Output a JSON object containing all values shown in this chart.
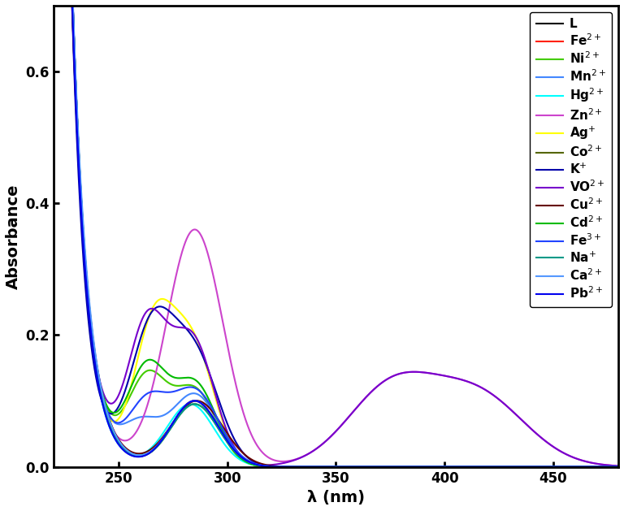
{
  "title": "",
  "xlabel": "λ (nm)",
  "ylabel": "Absorbance",
  "xlim": [
    220,
    480
  ],
  "ylim": [
    0,
    0.7
  ],
  "xticks": [
    250,
    300,
    350,
    400,
    450
  ],
  "yticks": [
    0.0,
    0.2,
    0.4,
    0.6
  ],
  "background_color": "#ffffff",
  "series": [
    {
      "label": "L",
      "color": "#000000",
      "lw": 1.5,
      "type": "L"
    },
    {
      "label": "Fe$^{2+}$",
      "color": "#ff2000",
      "lw": 1.5,
      "type": "Fe2"
    },
    {
      "label": "Ni$^{2+}$",
      "color": "#44cc00",
      "lw": 1.5,
      "type": "Ni2"
    },
    {
      "label": "Mn$^{2+}$",
      "color": "#4488ff",
      "lw": 1.5,
      "type": "Mn2"
    },
    {
      "label": "Hg$^{2+}$",
      "color": "#00ffff",
      "lw": 1.5,
      "type": "Hg2"
    },
    {
      "label": "Zn$^{2+}$",
      "color": "#cc44cc",
      "lw": 1.5,
      "type": "Zn2"
    },
    {
      "label": "Ag$^{+}$",
      "color": "#ffff00",
      "lw": 1.5,
      "type": "Ag"
    },
    {
      "label": "Co$^{2+}$",
      "color": "#556600",
      "lw": 1.5,
      "type": "Co2"
    },
    {
      "label": "K$^{+}$",
      "color": "#0000aa",
      "lw": 1.5,
      "type": "K"
    },
    {
      "label": "VO$^{2+}$",
      "color": "#7700cc",
      "lw": 1.5,
      "type": "VO2"
    },
    {
      "label": "Cu$^{2+}$",
      "color": "#660000",
      "lw": 1.5,
      "type": "Cu2"
    },
    {
      "label": "Cd$^{2+}$",
      "color": "#00bb00",
      "lw": 1.5,
      "type": "Cd2"
    },
    {
      "label": "Fe$^{3+}$",
      "color": "#2244ff",
      "lw": 1.5,
      "type": "Fe3"
    },
    {
      "label": "Na$^{+}$",
      "color": "#009988",
      "lw": 1.5,
      "type": "Na"
    },
    {
      "label": "Ca$^{2+}$",
      "color": "#5599ff",
      "lw": 1.5,
      "type": "Ca2"
    },
    {
      "label": "Pb$^{2+}$",
      "color": "#0000ee",
      "lw": 1.5,
      "type": "Pb2"
    }
  ]
}
